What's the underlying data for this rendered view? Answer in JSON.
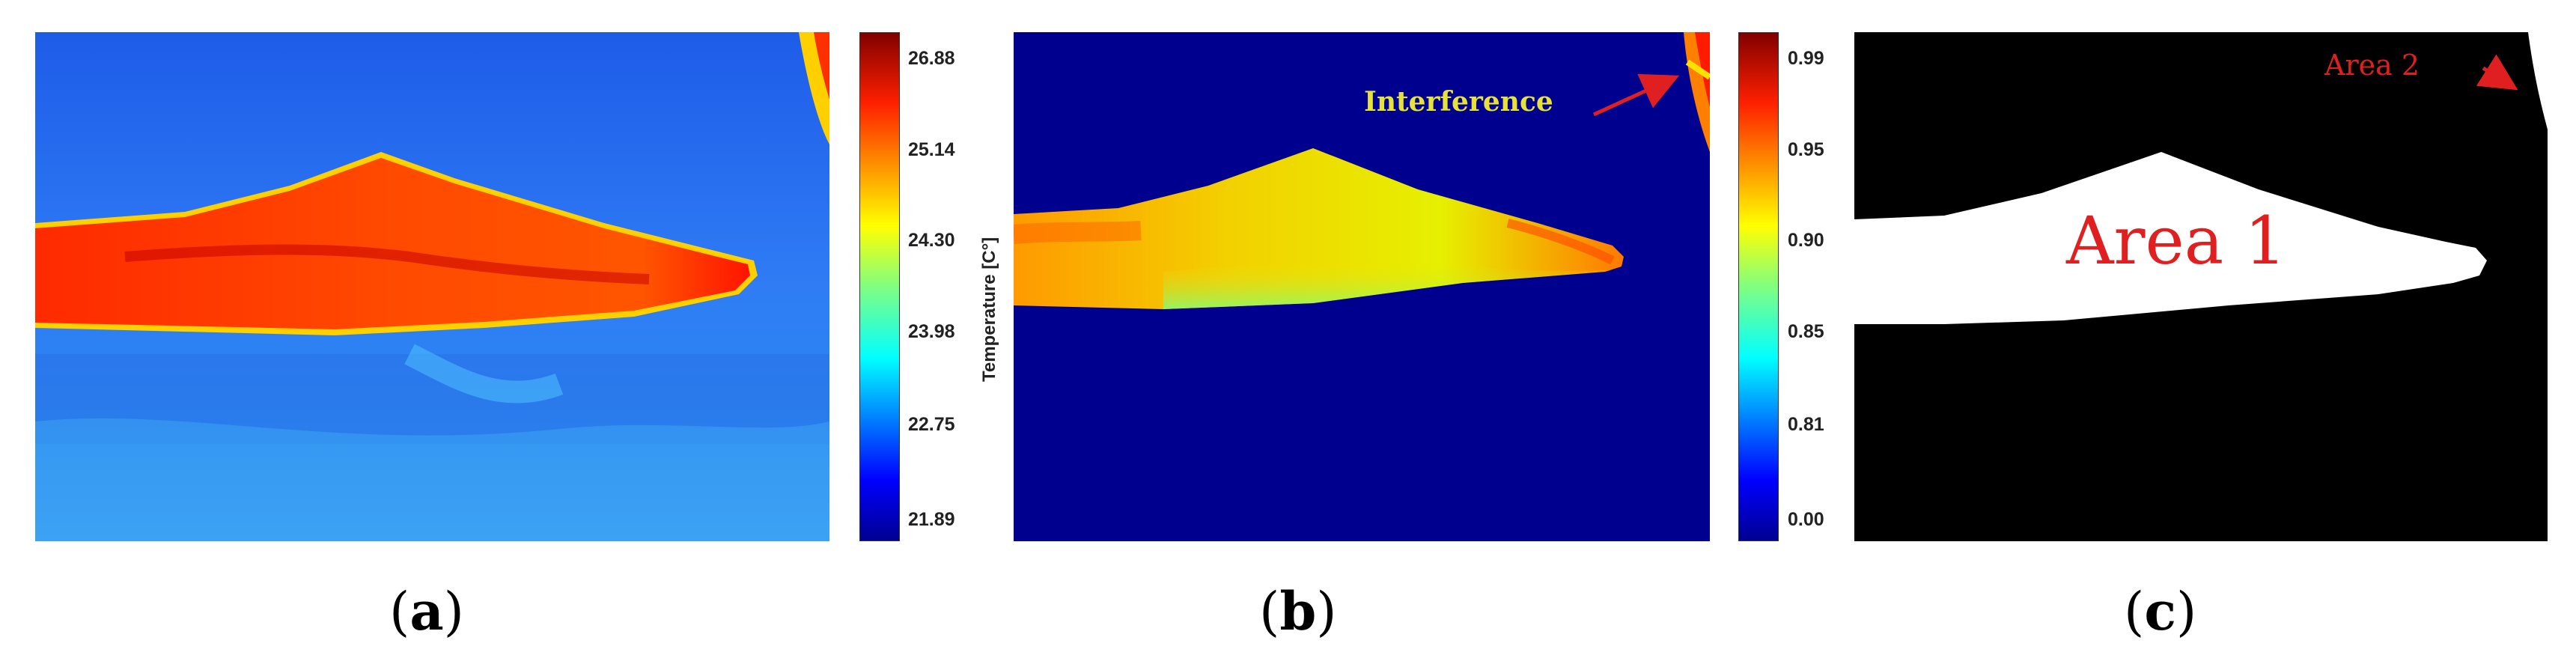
{
  "panels": {
    "a": {
      "caption_letter": "a",
      "colorbar": {
        "label": "Temperature [C°]",
        "ticks": [
          "26.88",
          "25.14",
          "24.30",
          "23.98",
          "22.75",
          "21.89"
        ]
      }
    },
    "b": {
      "caption_letter": "b",
      "annotation": "Interference",
      "colorbar": {
        "ticks": [
          "0.99",
          "0.95",
          "0.90",
          "0.85",
          "0.81",
          "0.00"
        ]
      }
    },
    "c": {
      "caption_letter": "c",
      "area1_label": "Area 1",
      "area2_label": "Area 2"
    }
  },
  "colors": {
    "jet_dark_blue": "#00008f",
    "jet_blue": "#0050ff",
    "jet_cyan": "#00d8ff",
    "jet_yellow": "#ffe600",
    "jet_orange": "#ff8a00",
    "jet_red": "#e81400",
    "jet_dark_red": "#800000",
    "annotation_yellow": "#e6e23a",
    "annotation_red": "#e02020"
  }
}
